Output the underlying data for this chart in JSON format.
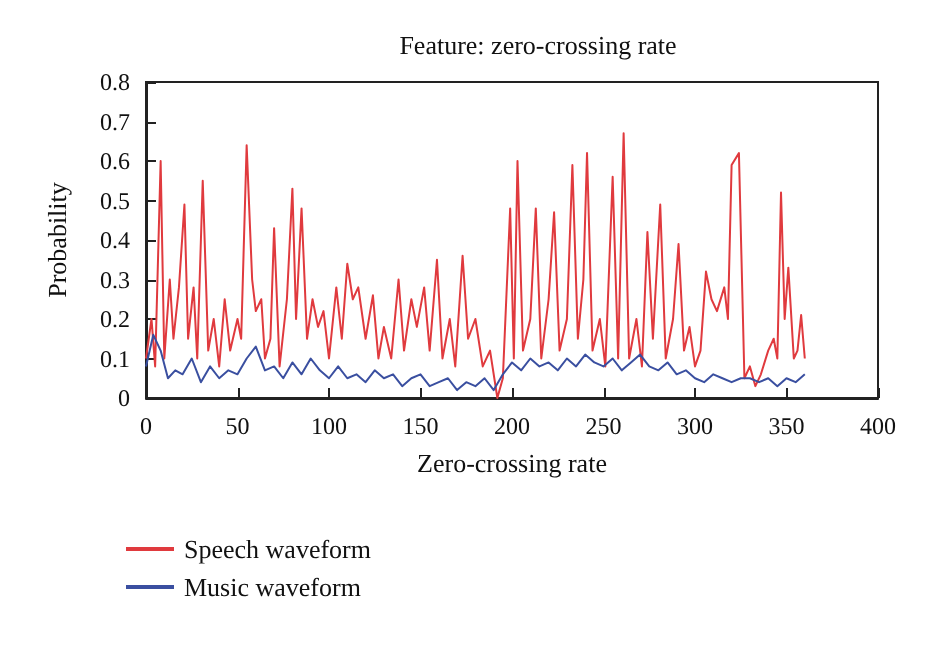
{
  "chart_data": {
    "type": "line",
    "title": "Feature: zero-crossing rate",
    "xlabel": "Zero-crossing rate",
    "ylabel": "Probability",
    "xlim": [
      0,
      400
    ],
    "xticks": [
      0,
      50,
      100,
      150,
      200,
      250,
      300,
      350,
      400
    ],
    "ylim": [
      0,
      0.8
    ],
    "yticks": [
      0,
      0.1,
      0.2,
      0.3,
      0.4,
      0.5,
      0.6,
      0.7,
      0.8
    ],
    "grid": false,
    "legend": "bottom left",
    "marker": "none",
    "line_style": "solid",
    "series": [
      {
        "name": "Speech waveform",
        "color": "#e03a3e",
        "x": [
          0,
          3,
          5,
          8,
          10,
          13,
          15,
          18,
          21,
          23,
          26,
          28,
          31,
          34,
          37,
          40,
          43,
          46,
          50,
          52,
          55,
          58,
          60,
          63,
          65,
          68,
          70,
          73,
          77,
          80,
          82,
          85,
          88,
          91,
          94,
          97,
          100,
          104,
          107,
          110,
          113,
          116,
          120,
          124,
          127,
          130,
          134,
          138,
          141,
          145,
          148,
          152,
          155,
          159,
          162,
          166,
          169,
          173,
          176,
          180,
          184,
          188,
          192,
          195,
          199,
          201,
          203,
          206,
          210,
          213,
          216,
          220,
          223,
          226,
          230,
          233,
          236,
          239,
          241,
          244,
          248,
          251,
          255,
          258,
          261,
          264,
          268,
          271,
          274,
          277,
          281,
          284,
          288,
          291,
          294,
          297,
          300,
          303,
          306,
          309,
          312,
          316,
          318,
          320,
          324,
          327,
          330,
          333,
          336,
          340,
          343,
          345,
          347,
          349,
          351,
          354,
          356,
          358,
          360
        ],
        "values": [
          0.1,
          0.2,
          0.08,
          0.6,
          0.1,
          0.3,
          0.15,
          0.28,
          0.49,
          0.15,
          0.28,
          0.1,
          0.55,
          0.12,
          0.2,
          0.08,
          0.25,
          0.12,
          0.2,
          0.15,
          0.64,
          0.3,
          0.22,
          0.25,
          0.1,
          0.15,
          0.43,
          0.08,
          0.25,
          0.53,
          0.2,
          0.48,
          0.15,
          0.25,
          0.18,
          0.22,
          0.1,
          0.28,
          0.15,
          0.34,
          0.25,
          0.28,
          0.15,
          0.26,
          0.1,
          0.18,
          0.1,
          0.3,
          0.12,
          0.25,
          0.18,
          0.28,
          0.12,
          0.35,
          0.1,
          0.2,
          0.08,
          0.36,
          0.15,
          0.2,
          0.08,
          0.12,
          0,
          0.05,
          0.48,
          0.1,
          0.6,
          0.12,
          0.2,
          0.48,
          0.1,
          0.25,
          0.47,
          0.12,
          0.2,
          0.59,
          0.15,
          0.3,
          0.62,
          0.12,
          0.2,
          0.08,
          0.56,
          0.1,
          0.67,
          0.1,
          0.2,
          0.08,
          0.42,
          0.15,
          0.49,
          0.1,
          0.2,
          0.39,
          0.12,
          0.18,
          0.08,
          0.12,
          0.32,
          0.25,
          0.22,
          0.28,
          0.2,
          0.59,
          0.62,
          0.05,
          0.08,
          0.03,
          0.06,
          0.12,
          0.15,
          0.1,
          0.52,
          0.2,
          0.33,
          0.1,
          0.12,
          0.21,
          0.1
        ]
      },
      {
        "name": "Music waveform",
        "color": "#3a4fa0",
        "x": [
          0,
          4,
          8,
          12,
          16,
          20,
          25,
          30,
          35,
          40,
          45,
          50,
          55,
          60,
          65,
          70,
          75,
          80,
          85,
          90,
          95,
          100,
          105,
          110,
          115,
          120,
          125,
          130,
          135,
          140,
          145,
          150,
          155,
          160,
          165,
          170,
          175,
          180,
          185,
          190,
          195,
          200,
          205,
          210,
          215,
          220,
          225,
          230,
          235,
          240,
          245,
          250,
          255,
          260,
          265,
          270,
          275,
          280,
          285,
          290,
          295,
          300,
          305,
          310,
          315,
          320,
          325,
          330,
          335,
          340,
          345,
          350,
          355,
          360
        ],
        "values": [
          0.08,
          0.16,
          0.12,
          0.05,
          0.07,
          0.06,
          0.1,
          0.04,
          0.08,
          0.05,
          0.07,
          0.06,
          0.1,
          0.13,
          0.07,
          0.08,
          0.05,
          0.09,
          0.06,
          0.1,
          0.07,
          0.05,
          0.08,
          0.05,
          0.06,
          0.04,
          0.07,
          0.05,
          0.06,
          0.03,
          0.05,
          0.06,
          0.03,
          0.04,
          0.05,
          0.02,
          0.04,
          0.03,
          0.05,
          0.02,
          0.06,
          0.09,
          0.07,
          0.1,
          0.08,
          0.09,
          0.07,
          0.1,
          0.08,
          0.11,
          0.09,
          0.08,
          0.1,
          0.07,
          0.09,
          0.11,
          0.08,
          0.07,
          0.09,
          0.06,
          0.07,
          0.05,
          0.04,
          0.06,
          0.05,
          0.04,
          0.05,
          0.05,
          0.04,
          0.05,
          0.03,
          0.05,
          0.04,
          0.06
        ]
      }
    ]
  }
}
